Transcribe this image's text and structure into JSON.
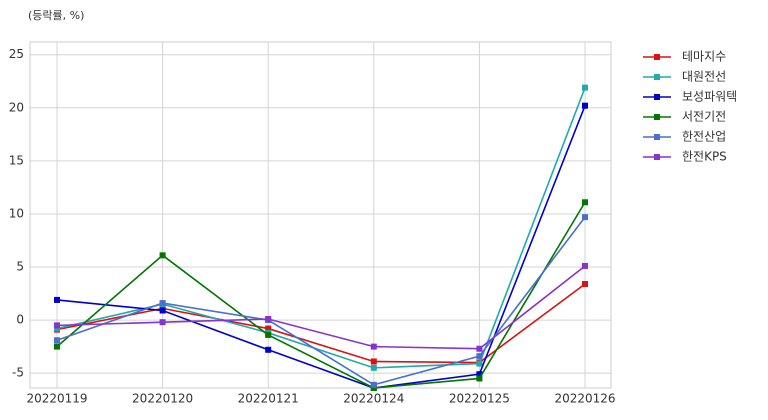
{
  "chart_data": {
    "type": "line",
    "y_label": "(등락률, %)",
    "categories": [
      "20220119",
      "20220120",
      "20220121",
      "20220124",
      "20220125",
      "20220126"
    ],
    "series": [
      {
        "name": "테마지수",
        "color": "#dd1111",
        "values": [
          -0.9,
          1.1,
          -0.8,
          -3.9,
          -4.0,
          3.4
        ]
      },
      {
        "name": "대원전선",
        "color": "#20aaaa",
        "values": [
          -0.8,
          1.5,
          -1.2,
          -4.5,
          -4.1,
          21.9
        ]
      },
      {
        "name": "보성파워텍",
        "color": "#0000cc",
        "values": [
          1.9,
          0.9,
          -2.8,
          -6.4,
          -5.1,
          20.2
        ]
      },
      {
        "name": "서전기전",
        "color": "#007700",
        "values": [
          -2.5,
          6.1,
          -1.4,
          -6.4,
          -5.5,
          11.1
        ]
      },
      {
        "name": "한전산업",
        "color": "#4a6fd0",
        "values": [
          -1.9,
          1.6,
          0.0,
          -6.1,
          -3.4,
          9.7
        ]
      },
      {
        "name": "한전KPS",
        "color": "#8833cc",
        "values": [
          -0.5,
          -0.2,
          0.1,
          -2.5,
          -2.7,
          5.1
        ]
      }
    ],
    "ylim": [
      -6.4,
      26.2
    ],
    "yticks": [
      -5,
      0,
      5,
      10,
      15,
      20,
      25
    ],
    "grid": true
  }
}
